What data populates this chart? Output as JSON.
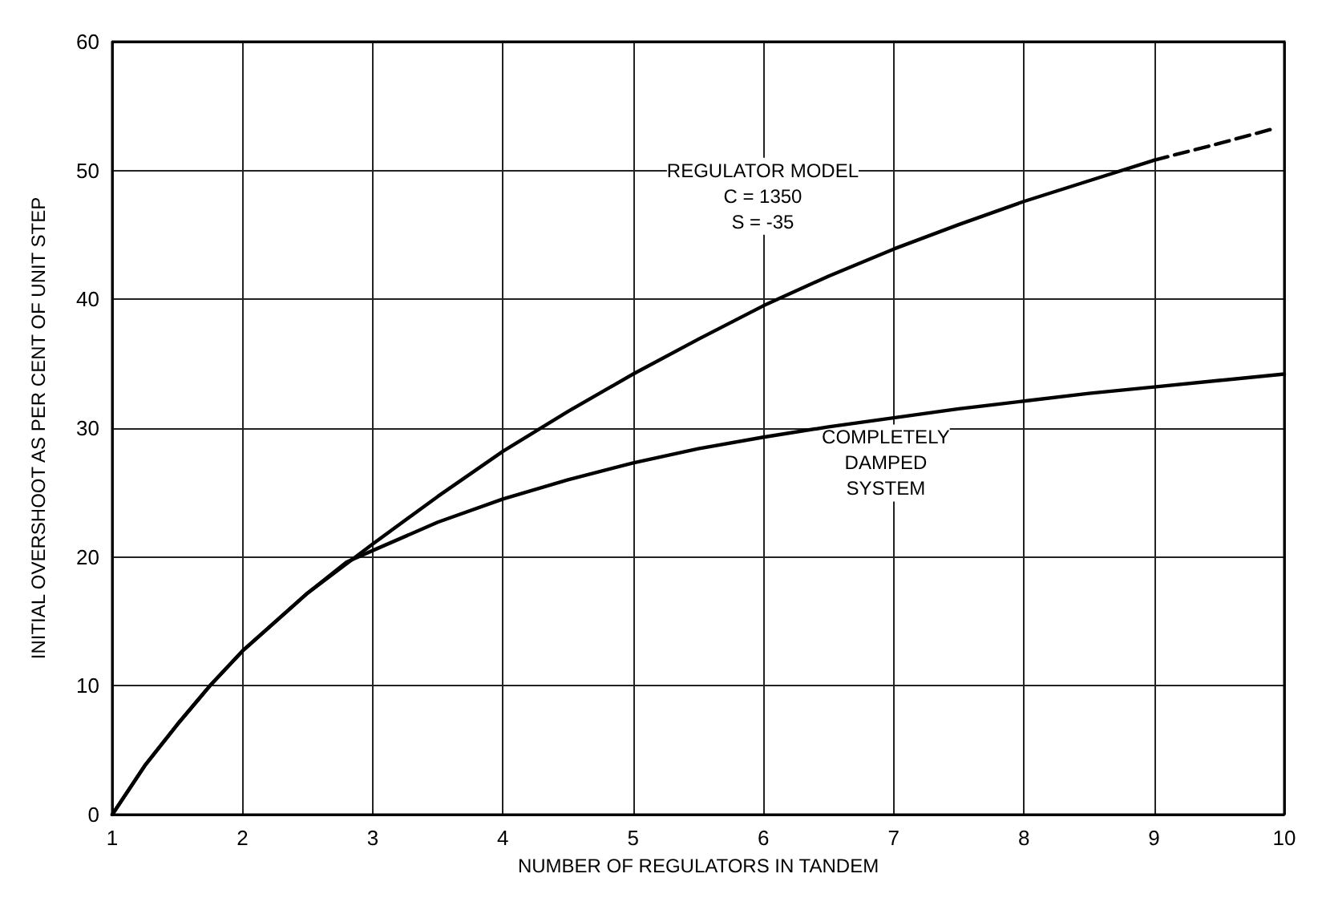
{
  "chart_data": {
    "type": "line",
    "xlabel": "NUMBER OF REGULATORS IN TANDEM",
    "ylabel": "INITIAL OVERSHOOT AS PER CENT OF UNIT STEP",
    "xlim": [
      1,
      10
    ],
    "xticks": [
      1,
      2,
      3,
      4,
      5,
      6,
      7,
      8,
      9,
      10
    ],
    "ylim": [
      0,
      60
    ],
    "yticks": [
      0,
      10,
      20,
      30,
      40,
      50,
      60
    ],
    "grid": true,
    "marker": "none",
    "series": [
      {
        "color": "#000000",
        "line_style": "solid",
        "x": [
          1,
          1.25,
          1.5,
          1.75,
          2,
          2.5,
          3,
          3.5,
          4,
          4.5,
          5,
          5.5,
          6,
          6.5,
          7,
          7.5,
          8,
          8.5,
          9
        ],
        "values": [
          0,
          3.8,
          7,
          10,
          12.7,
          17.2,
          21,
          24.7,
          28.2,
          31.3,
          34.2,
          36.9,
          39.5,
          41.8,
          43.9,
          45.8,
          47.6,
          49.2,
          50.8
        ]
      },
      {
        "color": "#000000",
        "line_style": "dashed",
        "x": [
          9,
          9.5,
          9.9
        ],
        "values": [
          50.8,
          52.1,
          53.2
        ]
      },
      {
        "color": "#000000",
        "line_style": "solid",
        "x": [
          1,
          1.25,
          1.5,
          1.75,
          2,
          2.5,
          2.8,
          3,
          3.5,
          4,
          4.5,
          5,
          5.5,
          6,
          6.5,
          7,
          7.5,
          8,
          8.5,
          9,
          9.5,
          10
        ],
        "values": [
          0,
          3.8,
          7,
          10,
          12.7,
          17.2,
          19.6,
          20.5,
          22.7,
          24.5,
          26,
          27.3,
          28.4,
          29.3,
          30.1,
          30.8,
          31.5,
          32.1,
          32.7,
          33.2,
          33.7,
          34.2
        ]
      }
    ],
    "annotations": [
      "REGULATOR MODEL\nC = 1350\nS = -35",
      "COMPLETELY\nDAMPED\nSYSTEM"
    ]
  }
}
